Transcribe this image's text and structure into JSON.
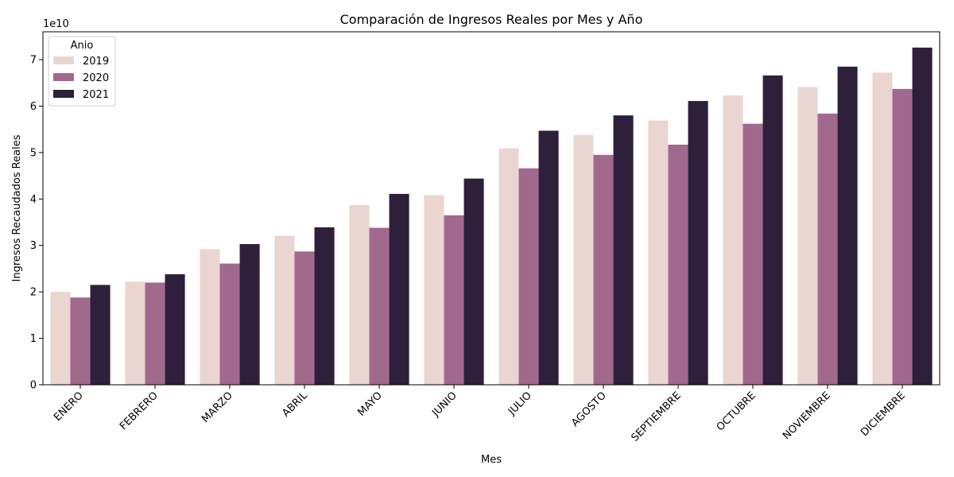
{
  "chart_data": {
    "type": "bar",
    "title": "Comparación de Ingresos Reales por Mes y Año",
    "xlabel": "Mes",
    "ylabel": "Ingresos Recaudados Reales",
    "y_offset_label": "1e10",
    "ylim": [
      0,
      7.6
    ],
    "yticks": [
      0,
      1,
      2,
      3,
      4,
      5,
      6,
      7
    ],
    "legend_title": "Anio",
    "legend_position": "top-left",
    "grid": false,
    "categories": [
      "ENERO",
      "FEBRERO",
      "MARZO",
      "ABRIL",
      "MAYO",
      "JUNIO",
      "JULIO",
      "AGOSTO",
      "SEPTIEMBRE",
      "OCTUBRE",
      "NOVIEMBRE",
      "DICIEMBRE"
    ],
    "series": [
      {
        "name": "2019",
        "color": "#ebd5d1",
        "values": [
          2.0,
          2.22,
          2.92,
          3.21,
          3.87,
          4.08,
          5.09,
          5.38,
          5.69,
          6.23,
          6.41,
          6.72
        ]
      },
      {
        "name": "2020",
        "color": "#a2698f",
        "values": [
          1.88,
          2.2,
          2.61,
          2.87,
          3.38,
          3.65,
          4.66,
          4.95,
          5.17,
          5.62,
          5.84,
          6.37
        ]
      },
      {
        "name": "2021",
        "color": "#2e1f3b",
        "values": [
          2.15,
          2.38,
          3.03,
          3.39,
          4.11,
          4.44,
          5.47,
          5.8,
          6.11,
          6.66,
          6.85,
          7.26
        ]
      }
    ]
  }
}
